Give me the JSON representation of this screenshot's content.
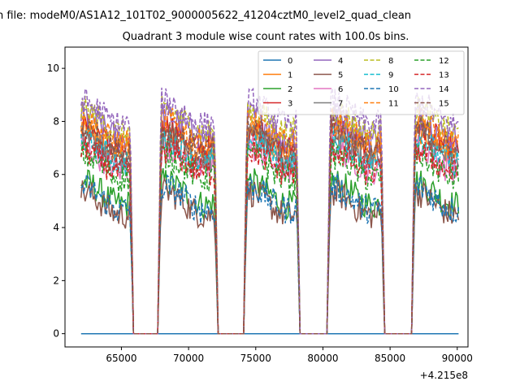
{
  "figure": {
    "suptitle": "n file: modeM0/AS1A12_101T02_9000005622_41204cztM0_level2_quad_clean",
    "title": "Quadrant 3 module wise count rates with 100.0s bins.",
    "offset_text": "+4.215e8"
  },
  "chart_data": {
    "type": "line",
    "title": "Quadrant 3 module wise count rates with 100.0s bins.",
    "xlabel": "",
    "ylabel": "",
    "x_offset": 421500000,
    "xlim": [
      60800,
      90800
    ],
    "ylim": [
      -0.5,
      10.8
    ],
    "x_ticks": [
      65000,
      70000,
      75000,
      80000,
      85000,
      90000
    ],
    "x_tick_labels": [
      "65000",
      "70000",
      "75000",
      "80000",
      "85000",
      "90000"
    ],
    "y_ticks": [
      0,
      2,
      4,
      6,
      8,
      10
    ],
    "y_tick_labels": [
      "0",
      "2",
      "4",
      "6",
      "8",
      "10"
    ],
    "grid": false,
    "legend_placement": "top-right",
    "legend_columns": 4,
    "gaps_zero": [
      [
        65900,
        67700
      ],
      [
        72200,
        74100
      ],
      [
        78300,
        80300
      ],
      [
        84600,
        86600
      ]
    ],
    "series": [
      {
        "name": "0",
        "color": "#1f77b4",
        "style": "solid",
        "level": 0.0
      },
      {
        "name": "1",
        "color": "#ff7f0e",
        "style": "solid",
        "level": 7.2
      },
      {
        "name": "2",
        "color": "#2ca02c",
        "style": "solid",
        "level": 5.3
      },
      {
        "name": "3",
        "color": "#d62728",
        "style": "solid",
        "level": 7.4
      },
      {
        "name": "4",
        "color": "#9467bd",
        "style": "solid",
        "level": 7.8
      },
      {
        "name": "5",
        "color": "#8c564b",
        "style": "solid",
        "level": 4.9
      },
      {
        "name": "6",
        "color": "#e377c2",
        "style": "solid",
        "level": 6.6
      },
      {
        "name": "7",
        "color": "#7f7f7f",
        "style": "solid",
        "level": 7.0
      },
      {
        "name": "8",
        "color": "#bcbd22",
        "style": "dashed",
        "level": 8.0
      },
      {
        "name": "9",
        "color": "#17becf",
        "style": "dashed",
        "level": 6.9
      },
      {
        "name": "10",
        "color": "#1f77b4",
        "style": "dashed",
        "level": 5.1
      },
      {
        "name": "11",
        "color": "#ff7f0e",
        "style": "dashed",
        "level": 7.6
      },
      {
        "name": "12",
        "color": "#2ca02c",
        "style": "dashed",
        "level": 6.3
      },
      {
        "name": "13",
        "color": "#d62728",
        "style": "dashed",
        "level": 6.5
      },
      {
        "name": "14",
        "color": "#9467bd",
        "style": "dashed",
        "level": 8.3
      },
      {
        "name": "15",
        "color": "#8c564b",
        "style": "dashed",
        "level": 7.3
      }
    ]
  }
}
